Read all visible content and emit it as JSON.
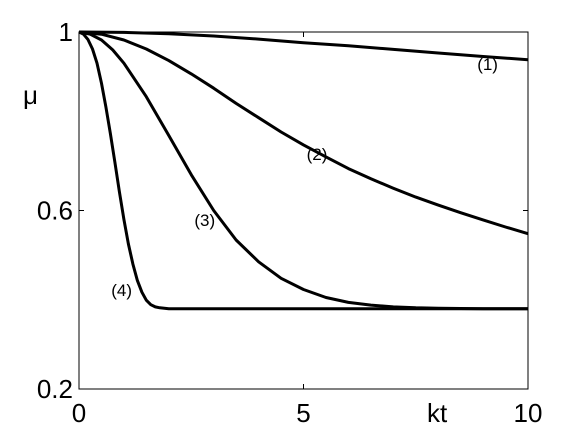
{
  "chart_data": {
    "type": "line",
    "title": "",
    "xlabel": "kt",
    "ylabel": "μ",
    "xlim": [
      0,
      10
    ],
    "ylim": [
      0.2,
      1
    ],
    "x_ticks": [
      0,
      5,
      10
    ],
    "x_tick_labels": [
      "0",
      "5",
      "10"
    ],
    "y_ticks": [
      0.2,
      0.6,
      1
    ],
    "y_tick_labels": [
      "0.2",
      "0.6",
      "1"
    ],
    "grid": false,
    "line_color": "#000000",
    "series": [
      {
        "name": "(1)",
        "x": [
          0,
          1,
          2,
          3,
          4,
          5,
          6,
          7,
          8,
          9,
          10
        ],
        "y": [
          1.0,
          0.999,
          0.996,
          0.991,
          0.984,
          0.976,
          0.969,
          0.961,
          0.953,
          0.945,
          0.938
        ]
      },
      {
        "name": "(2)",
        "x": [
          0,
          0.5,
          1,
          1.5,
          2,
          2.5,
          3,
          3.5,
          4,
          4.5,
          5,
          5.5,
          6,
          6.5,
          7,
          7.5,
          8,
          8.5,
          9,
          9.5,
          10
        ],
        "y": [
          1.0,
          0.995,
          0.982,
          0.962,
          0.936,
          0.906,
          0.874,
          0.84,
          0.808,
          0.776,
          0.747,
          0.72,
          0.694,
          0.671,
          0.65,
          0.63,
          0.612,
          0.595,
          0.579,
          0.563,
          0.548
        ]
      },
      {
        "name": "(3)",
        "x": [
          0,
          0.25,
          0.5,
          0.75,
          1,
          1.5,
          2,
          2.5,
          3,
          3.5,
          4,
          4.5,
          5,
          5.5,
          6,
          6.5,
          7,
          7.5,
          8,
          9,
          10
        ],
        "y": [
          1.0,
          0.995,
          0.982,
          0.96,
          0.93,
          0.855,
          0.768,
          0.68,
          0.6,
          0.534,
          0.485,
          0.448,
          0.423,
          0.405,
          0.394,
          0.388,
          0.384,
          0.382,
          0.381,
          0.38,
          0.38
        ]
      },
      {
        "name": "(4)",
        "x": [
          0,
          0.1,
          0.2,
          0.3,
          0.4,
          0.5,
          0.6,
          0.7,
          0.8,
          0.9,
          1.0,
          1.1,
          1.2,
          1.3,
          1.4,
          1.5,
          1.6,
          1.7,
          1.8,
          2.0,
          2.2,
          2.5,
          3,
          5,
          10
        ],
        "y": [
          1.0,
          0.995,
          0.983,
          0.962,
          0.93,
          0.885,
          0.832,
          0.772,
          0.708,
          0.642,
          0.58,
          0.525,
          0.48,
          0.443,
          0.417,
          0.399,
          0.389,
          0.384,
          0.382,
          0.38,
          0.38,
          0.38,
          0.38,
          0.38,
          0.38
        ]
      }
    ],
    "annotations": [
      {
        "text": "(1)",
        "series": 0,
        "x": 9.1,
        "y": 0.915
      },
      {
        "text": "(2)",
        "series": 1,
        "x": 5.3,
        "y": 0.713
      },
      {
        "text": "(3)",
        "series": 2,
        "x": 2.8,
        "y": 0.565
      },
      {
        "text": "(4)",
        "series": 3,
        "x": 0.95,
        "y": 0.408
      }
    ]
  }
}
